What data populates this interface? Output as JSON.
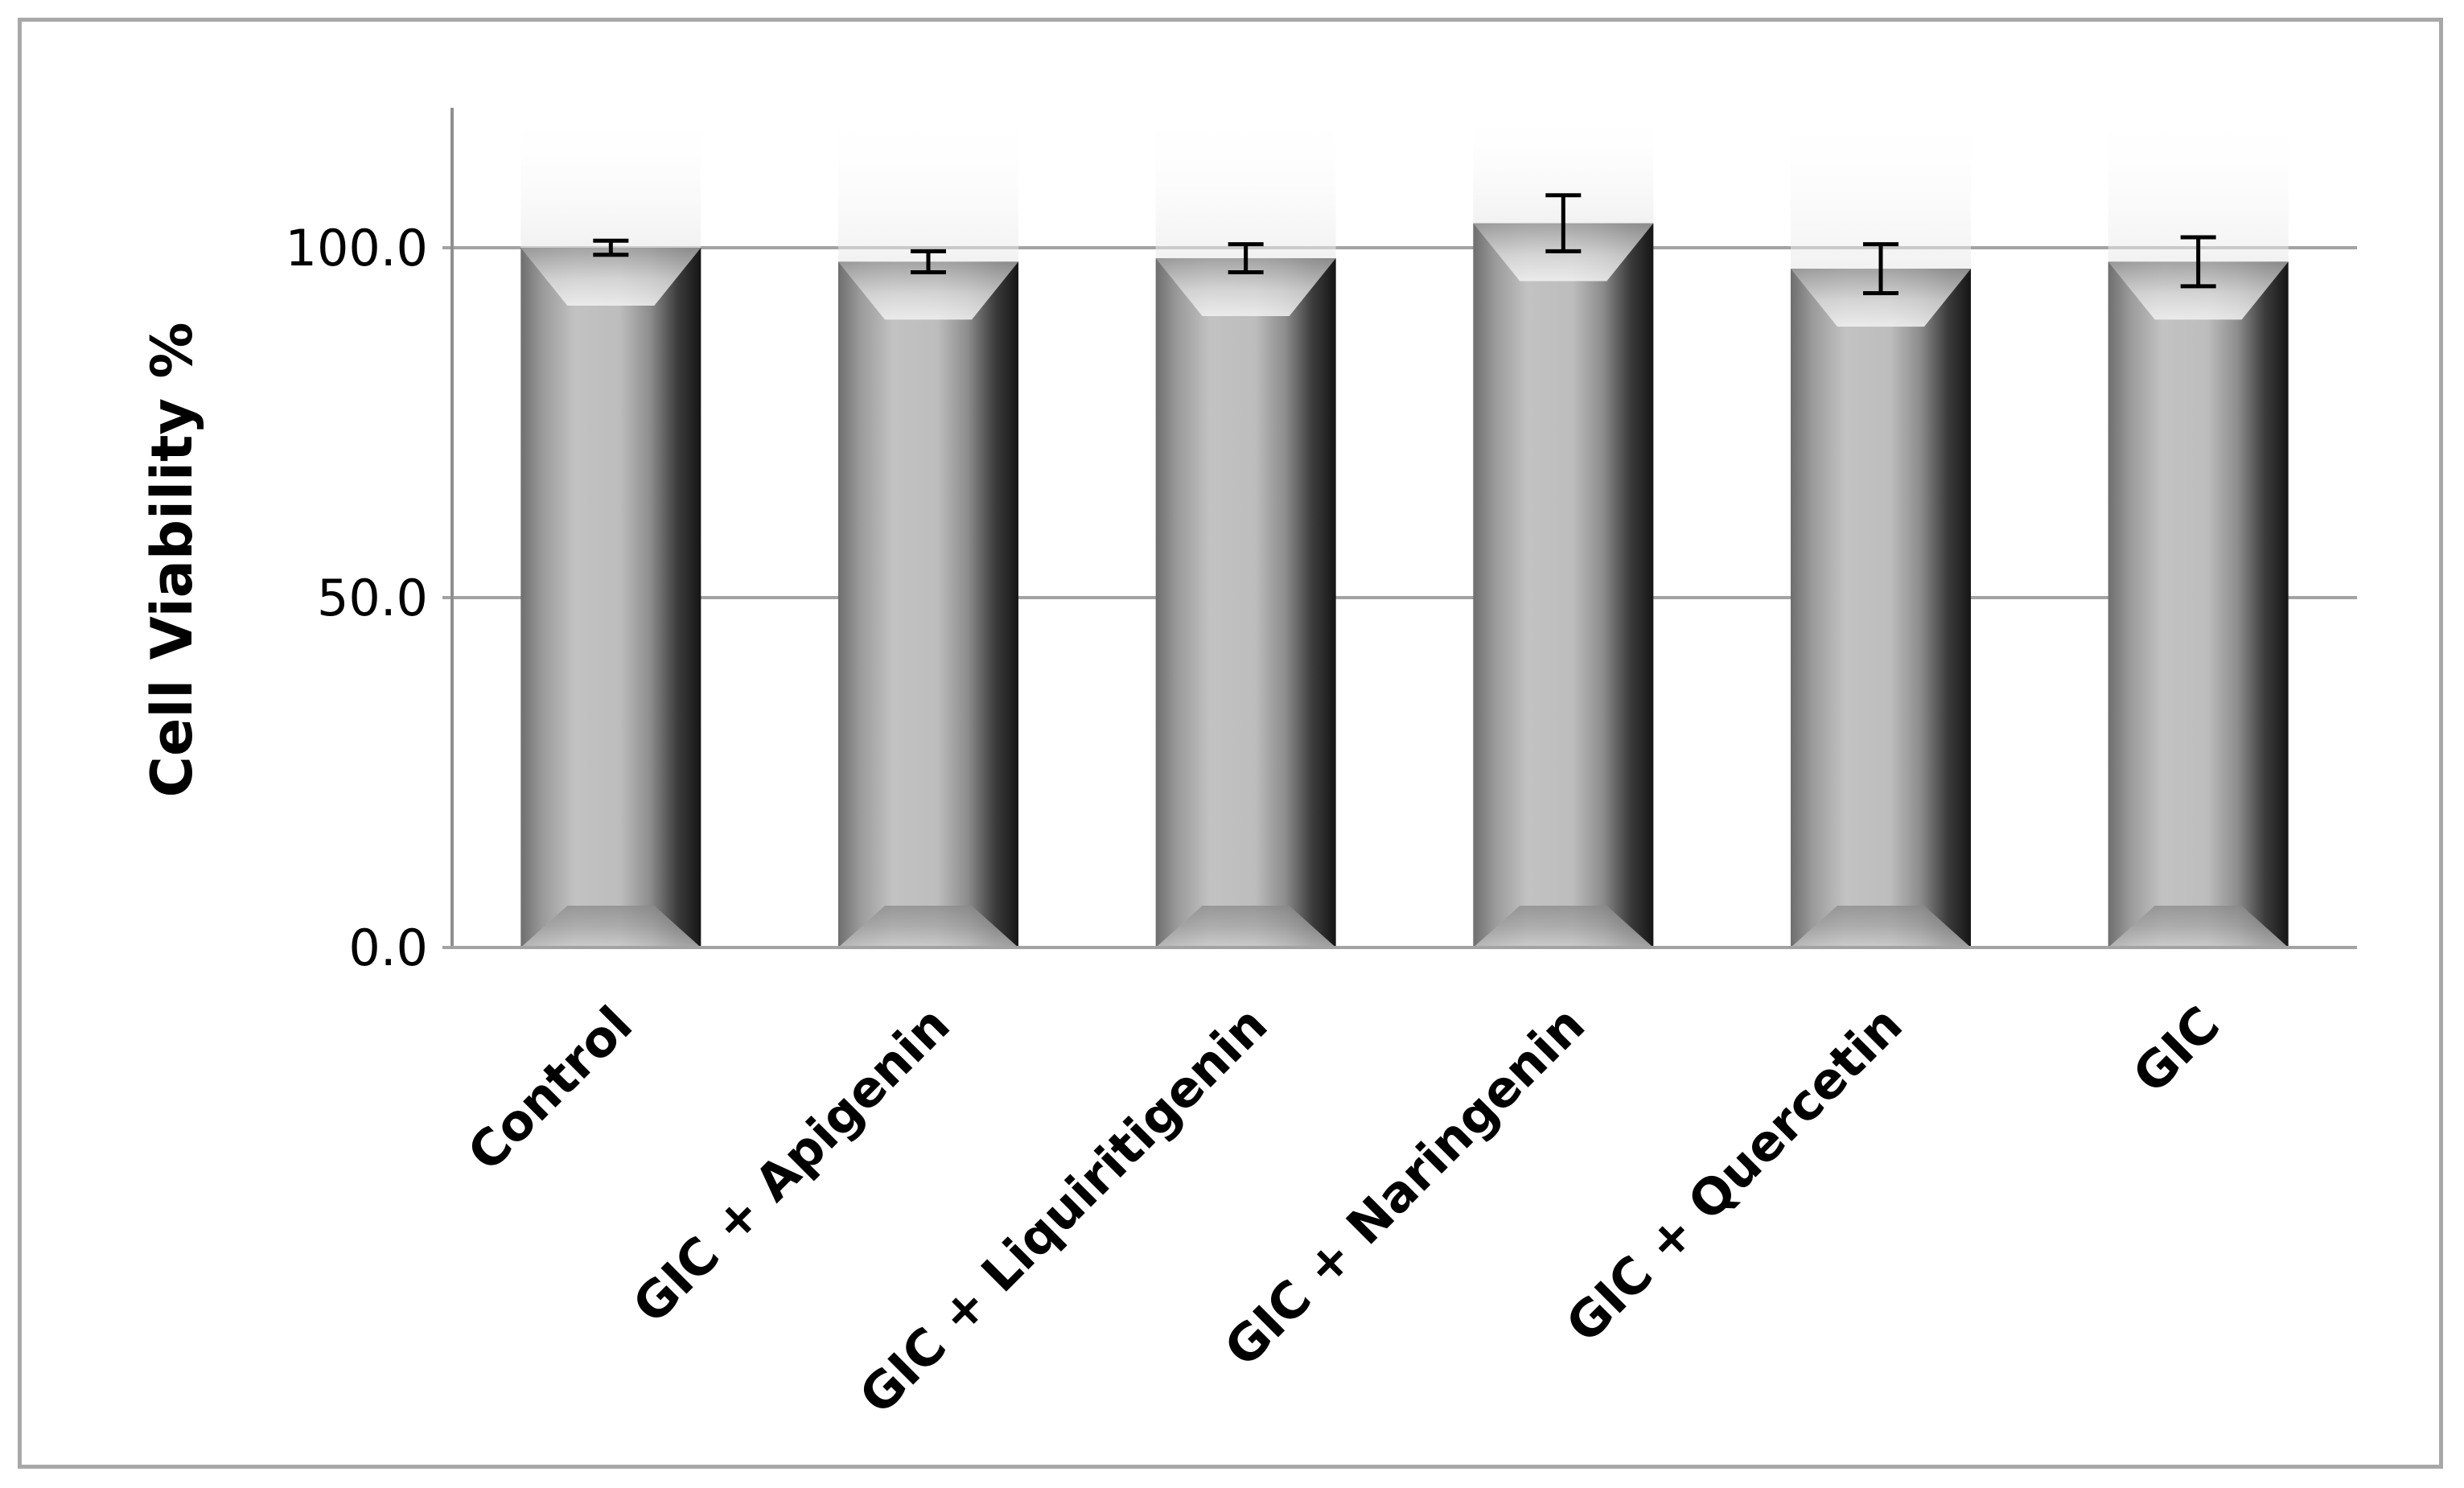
{
  "chart_data": {
    "type": "bar",
    "title": "",
    "xlabel": "",
    "ylabel": "Cell Viability %",
    "ylim": [
      0,
      120
    ],
    "yticks": [
      0,
      50,
      100
    ],
    "ytick_labels": [
      "0.0",
      "50.0",
      "100.0"
    ],
    "grid": "horizontal",
    "legend": "none",
    "categories": [
      "Control",
      "GIC + Apigenin",
      "GIC + Liquiritigenin",
      "GIC + Naringenin",
      "GIC + Quercetin",
      "GIC"
    ],
    "values": [
      100.0,
      98.0,
      98.5,
      103.5,
      97.0,
      98.0
    ],
    "errors": [
      1.0,
      1.5,
      2.0,
      4.0,
      3.5,
      3.5
    ],
    "bar_color": "#b8b8b8"
  }
}
